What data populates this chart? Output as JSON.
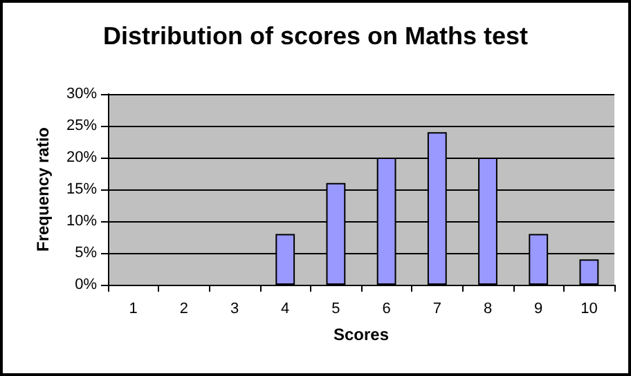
{
  "chart_data": {
    "type": "bar",
    "title": "Distribution of scores on Maths test",
    "xlabel": "Scores",
    "ylabel": "Frequency ratio",
    "categories": [
      "1",
      "2",
      "3",
      "4",
      "5",
      "6",
      "7",
      "8",
      "9",
      "10"
    ],
    "values": [
      0,
      0,
      0,
      8,
      16,
      20,
      24,
      20,
      8,
      4
    ],
    "color": "#9999ff",
    "ylim": [
      0,
      30
    ],
    "yticks": [
      {
        "value": 0,
        "label": "0%"
      },
      {
        "value": 5,
        "label": "5%"
      },
      {
        "value": 10,
        "label": "10%"
      },
      {
        "value": 15,
        "label": "15%"
      },
      {
        "value": 20,
        "label": "20%"
      },
      {
        "value": 25,
        "label": "25%"
      },
      {
        "value": 30,
        "label": "30%"
      }
    ],
    "grid": true
  }
}
